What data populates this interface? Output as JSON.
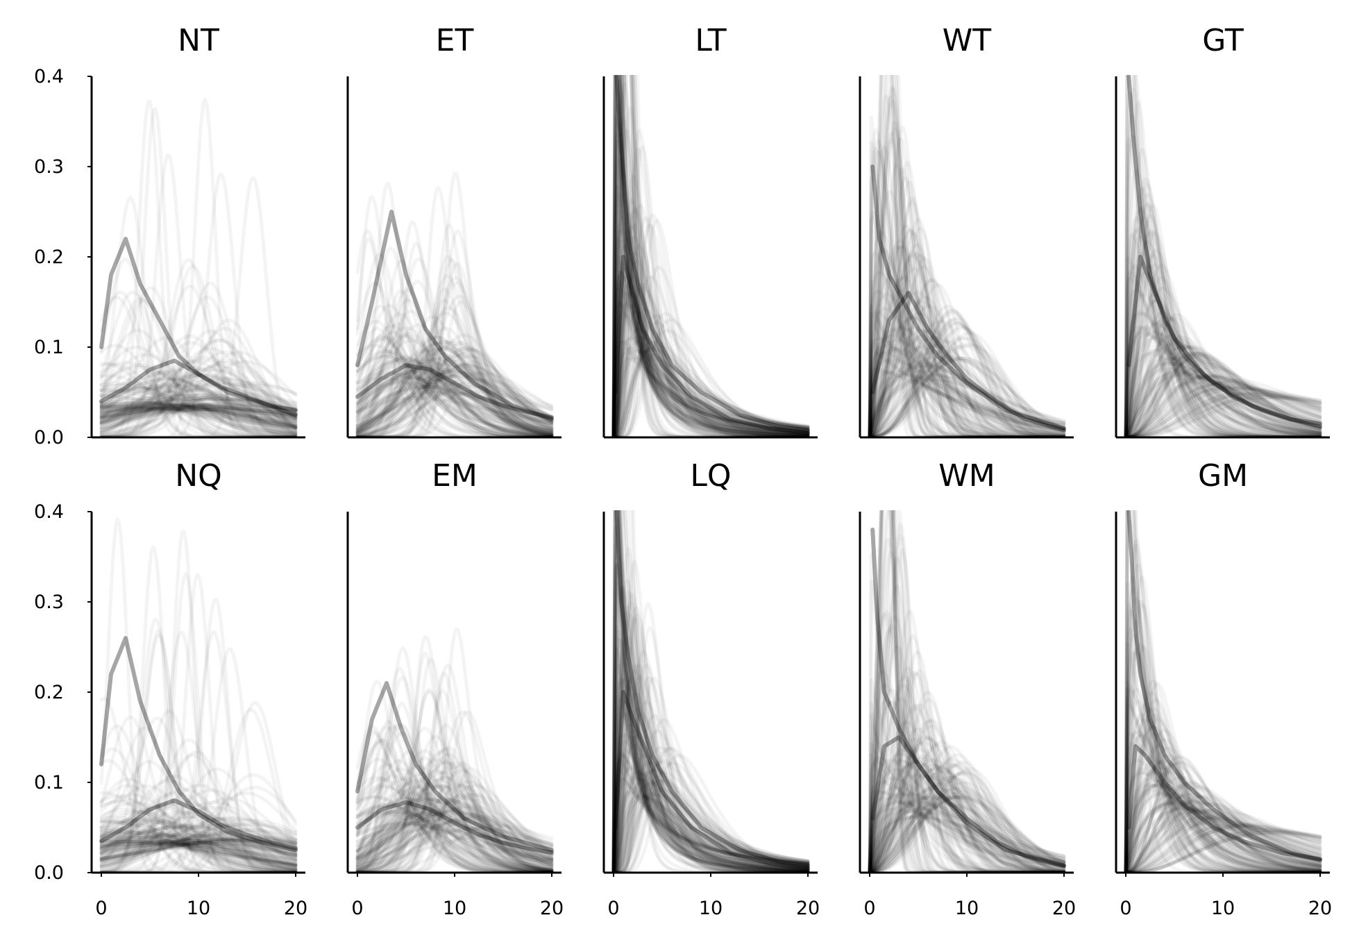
{
  "chart_data": {
    "type": "line",
    "layout": {
      "rows": 2,
      "cols": 5
    },
    "line_color": "#000000",
    "background": "#ffffff",
    "xlim": [
      -1,
      21
    ],
    "ylim": [
      0,
      0.4
    ],
    "x_ticks": [
      0,
      10,
      20
    ],
    "y_ticks": [
      0.0,
      0.1,
      0.2,
      0.3,
      0.4
    ],
    "x_tick_labels": [
      "0",
      "10",
      "20"
    ],
    "y_tick_labels": [
      "0.0",
      "0.1",
      "0.2",
      "0.3",
      "0.4"
    ],
    "grid": false,
    "shared_x": true,
    "shared_y": true,
    "panels": [
      {
        "title": "NT",
        "dist": "normal",
        "series": [
          {
            "x": [
              0,
              2.5,
              5,
              7.5,
              10,
              12.5,
              15,
              17.5,
              20
            ],
            "y": [
              0.04,
              0.055,
              0.075,
              0.085,
              0.07,
              0.055,
              0.045,
              0.035,
              0.03
            ]
          },
          {
            "x": [
              0,
              1,
              2.5,
              4,
              6,
              8,
              10,
              13,
              16,
              20
            ],
            "y": [
              0.1,
              0.18,
              0.22,
              0.17,
              0.13,
              0.09,
              0.07,
              0.05,
              0.04,
              0.025
            ]
          }
        ]
      },
      {
        "title": "ET",
        "dist": "exponential-modified",
        "series": [
          {
            "x": [
              0,
              2.5,
              5,
              7.5,
              10,
              12.5,
              15,
              17.5,
              20
            ],
            "y": [
              0.045,
              0.065,
              0.08,
              0.075,
              0.06,
              0.045,
              0.035,
              0.028,
              0.022
            ]
          },
          {
            "x": [
              0,
              1.5,
              3.5,
              5,
              7,
              9,
              12,
              16,
              20
            ],
            "y": [
              0.08,
              0.15,
              0.25,
              0.18,
              0.12,
              0.09,
              0.06,
              0.035,
              0.02
            ]
          }
        ]
      },
      {
        "title": "LT",
        "dist": "lognormal",
        "series": [
          {
            "x": [
              0.3,
              0.8,
              1.5,
              2.5,
              4,
              6,
              9,
              13,
              17,
              20
            ],
            "y": [
              0.4,
              0.32,
              0.22,
              0.17,
              0.12,
              0.08,
              0.05,
              0.025,
              0.012,
              0.008
            ]
          },
          {
            "x": [
              0.2,
              1,
              2,
              3,
              5,
              8,
              12,
              16,
              20
            ],
            "y": [
              0.05,
              0.2,
              0.16,
              0.12,
              0.08,
              0.045,
              0.02,
              0.01,
              0.005
            ]
          }
        ]
      },
      {
        "title": "WT",
        "dist": "weibull",
        "series": [
          {
            "x": [
              0.3,
              1,
              2,
              3.5,
              5,
              7,
              10,
              14,
              20
            ],
            "y": [
              0.3,
              0.22,
              0.18,
              0.15,
              0.12,
              0.09,
              0.06,
              0.03,
              0.01
            ]
          },
          {
            "x": [
              0.3,
              2,
              4,
              6,
              8,
              10,
              13,
              16,
              20
            ],
            "y": [
              0.05,
              0.13,
              0.16,
              0.12,
              0.09,
              0.065,
              0.04,
              0.02,
              0.008
            ]
          }
        ]
      },
      {
        "title": "GT",
        "dist": "gamma",
        "series": [
          {
            "x": [
              0.3,
              0.8,
              1.5,
              2.5,
              4,
              6,
              9,
              13,
              17,
              20
            ],
            "y": [
              0.4,
              0.33,
              0.25,
              0.18,
              0.13,
              0.09,
              0.06,
              0.035,
              0.02,
              0.012
            ]
          },
          {
            "x": [
              0.3,
              1.5,
              3,
              5,
              8,
              11,
              14,
              17,
              20
            ],
            "y": [
              0.08,
              0.2,
              0.16,
              0.11,
              0.07,
              0.045,
              0.03,
              0.02,
              0.015
            ]
          }
        ]
      },
      {
        "title": "NQ",
        "dist": "normal",
        "series": [
          {
            "x": [
              0,
              2.5,
              5,
              7.5,
              10,
              12.5,
              15,
              17.5,
              20
            ],
            "y": [
              0.035,
              0.05,
              0.07,
              0.08,
              0.068,
              0.052,
              0.042,
              0.033,
              0.027
            ]
          },
          {
            "x": [
              0,
              1,
              2.5,
              4,
              6,
              8,
              10,
              13,
              16,
              20
            ],
            "y": [
              0.12,
              0.22,
              0.26,
              0.19,
              0.13,
              0.09,
              0.065,
              0.045,
              0.035,
              0.025
            ]
          }
        ]
      },
      {
        "title": "EM",
        "dist": "exponential-modified",
        "series": [
          {
            "x": [
              0,
              2.5,
              5,
              7.5,
              10,
              12.5,
              15,
              17.5,
              20
            ],
            "y": [
              0.05,
              0.07,
              0.078,
              0.07,
              0.055,
              0.042,
              0.033,
              0.027,
              0.022
            ]
          },
          {
            "x": [
              0,
              1.5,
              3,
              4.5,
              6,
              8,
              11,
              15,
              20
            ],
            "y": [
              0.09,
              0.17,
              0.21,
              0.16,
              0.12,
              0.09,
              0.06,
              0.04,
              0.025
            ]
          }
        ]
      },
      {
        "title": "LQ",
        "dist": "lognormal",
        "series": [
          {
            "x": [
              0.3,
              0.8,
              1.5,
              2.5,
              4,
              6,
              9,
              13,
              17,
              20
            ],
            "y": [
              0.4,
              0.3,
              0.24,
              0.18,
              0.13,
              0.09,
              0.05,
              0.025,
              0.012,
              0.008
            ]
          },
          {
            "x": [
              0.2,
              1,
              2,
              3.5,
              5,
              8,
              12,
              16,
              20
            ],
            "y": [
              0.05,
              0.2,
              0.17,
              0.13,
              0.09,
              0.05,
              0.022,
              0.01,
              0.005
            ]
          }
        ]
      },
      {
        "title": "WM",
        "dist": "weibull",
        "series": [
          {
            "x": [
              0.3,
              0.8,
              1.5,
              3,
              5,
              7,
              10,
              14,
              20
            ],
            "y": [
              0.38,
              0.28,
              0.2,
              0.16,
              0.12,
              0.09,
              0.055,
              0.025,
              0.008
            ]
          },
          {
            "x": [
              0.3,
              1.5,
              3,
              5,
              7,
              10,
              13,
              16,
              20
            ],
            "y": [
              0.06,
              0.14,
              0.15,
              0.12,
              0.09,
              0.06,
              0.035,
              0.018,
              0.007
            ]
          }
        ]
      },
      {
        "title": "GM",
        "dist": "gamma",
        "series": [
          {
            "x": [
              0.3,
              0.6,
              1,
              1.5,
              2.5,
              4,
              6,
              9,
              13,
              17,
              20
            ],
            "y": [
              0.4,
              0.35,
              0.27,
              0.22,
              0.17,
              0.13,
              0.1,
              0.07,
              0.04,
              0.022,
              0.014
            ]
          },
          {
            "x": [
              0.3,
              1,
              2,
              4,
              6,
              9,
              12,
              16,
              20
            ],
            "y": [
              0.05,
              0.14,
              0.13,
              0.1,
              0.075,
              0.05,
              0.035,
              0.022,
              0.015
            ]
          }
        ]
      }
    ]
  }
}
